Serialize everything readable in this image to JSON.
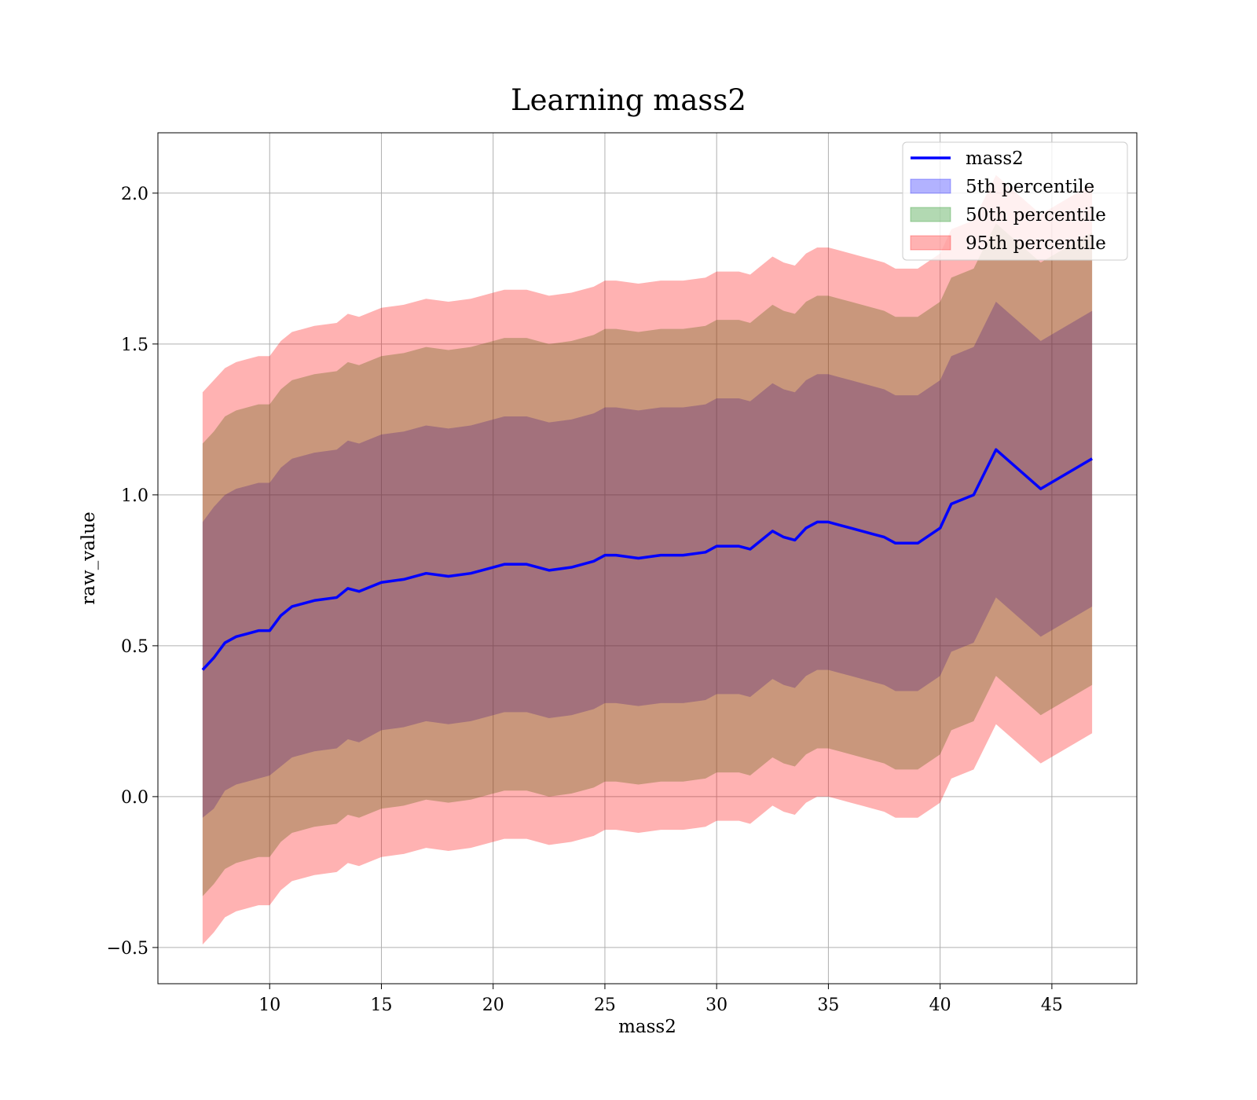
{
  "chart_data": {
    "type": "area",
    "title": "Learning mass2",
    "xlabel": "mass2",
    "ylabel": "raw_value",
    "xlim": [
      5.0,
      48.8
    ],
    "ylim": [
      -0.62,
      2.2
    ],
    "xticks": [
      10,
      15,
      20,
      25,
      30,
      35,
      40,
      45
    ],
    "yticks": [
      -0.5,
      0.0,
      0.5,
      1.0,
      1.5,
      2.0
    ],
    "ytick_labels": [
      "−0.5",
      "0.0",
      "0.5",
      "1.0",
      "1.5",
      "2.0"
    ],
    "xtick_labels": [
      "10",
      "15",
      "20",
      "25",
      "30",
      "35",
      "40",
      "45"
    ],
    "grid": true,
    "legend_position": "top-right",
    "x": [
      7.0,
      7.5,
      8.0,
      8.5,
      9.0,
      9.5,
      10.0,
      10.5,
      11.0,
      12.0,
      13.0,
      13.5,
      14.0,
      15.0,
      16.0,
      17.0,
      18.0,
      19.0,
      20.0,
      20.5,
      21.5,
      22.5,
      23.5,
      24.5,
      25.0,
      25.5,
      26.5,
      27.5,
      28.5,
      29.5,
      30.0,
      30.5,
      31.0,
      31.5,
      32.0,
      32.5,
      33.0,
      33.5,
      34.0,
      34.5,
      35.0,
      35.5,
      36.0,
      36.5,
      37.0,
      37.5,
      38.0,
      39.0,
      40.0,
      40.5,
      41.5,
      42.5,
      44.5,
      46.8
    ],
    "series": [
      {
        "name": "mass2",
        "kind": "line",
        "color": "#0000ff",
        "values": [
          0.42,
          0.46,
          0.51,
          0.53,
          0.54,
          0.55,
          0.55,
          0.6,
          0.63,
          0.65,
          0.66,
          0.69,
          0.68,
          0.71,
          0.72,
          0.74,
          0.73,
          0.74,
          0.76,
          0.77,
          0.77,
          0.75,
          0.76,
          0.78,
          0.8,
          0.8,
          0.79,
          0.8,
          0.8,
          0.81,
          0.83,
          0.83,
          0.83,
          0.82,
          0.85,
          0.88,
          0.86,
          0.85,
          0.89,
          0.91,
          0.91,
          0.9,
          0.89,
          0.88,
          0.87,
          0.86,
          0.84,
          0.84,
          0.89,
          0.97,
          1.0,
          1.15,
          1.02,
          1.12
        ]
      },
      {
        "name": "5th percentile",
        "kind": "band",
        "color": "#0000ff",
        "opacity": 0.3,
        "lower": [
          -0.07,
          -0.04,
          0.02,
          0.04,
          0.05,
          0.06,
          0.07,
          0.1,
          0.13,
          0.15,
          0.16,
          0.19,
          0.18,
          0.22,
          0.23,
          0.25,
          0.24,
          0.25,
          0.27,
          0.28,
          0.28,
          0.26,
          0.27,
          0.29,
          0.31,
          0.31,
          0.3,
          0.31,
          0.31,
          0.32,
          0.34,
          0.34,
          0.34,
          0.33,
          0.36,
          0.39,
          0.37,
          0.36,
          0.4,
          0.42,
          0.42,
          0.41,
          0.4,
          0.39,
          0.38,
          0.37,
          0.35,
          0.35,
          0.4,
          0.48,
          0.51,
          0.66,
          0.53,
          0.63
        ],
        "upper": [
          0.91,
          0.96,
          1.0,
          1.02,
          1.03,
          1.04,
          1.04,
          1.09,
          1.12,
          1.14,
          1.15,
          1.18,
          1.17,
          1.2,
          1.21,
          1.23,
          1.22,
          1.23,
          1.25,
          1.26,
          1.26,
          1.24,
          1.25,
          1.27,
          1.29,
          1.29,
          1.28,
          1.29,
          1.29,
          1.3,
          1.32,
          1.32,
          1.32,
          1.31,
          1.34,
          1.37,
          1.35,
          1.34,
          1.38,
          1.4,
          1.4,
          1.39,
          1.38,
          1.37,
          1.36,
          1.35,
          1.33,
          1.33,
          1.38,
          1.46,
          1.49,
          1.64,
          1.51,
          1.61
        ]
      },
      {
        "name": "50th percentile",
        "kind": "band",
        "color": "#008000",
        "opacity": 0.3,
        "lower": [
          -0.33,
          -0.29,
          -0.24,
          -0.22,
          -0.21,
          -0.2,
          -0.2,
          -0.15,
          -0.12,
          -0.1,
          -0.09,
          -0.06,
          -0.07,
          -0.04,
          -0.03,
          -0.01,
          -0.02,
          -0.01,
          0.01,
          0.02,
          0.02,
          0.0,
          0.01,
          0.03,
          0.05,
          0.05,
          0.04,
          0.05,
          0.05,
          0.06,
          0.08,
          0.08,
          0.08,
          0.07,
          0.1,
          0.13,
          0.11,
          0.1,
          0.14,
          0.16,
          0.16,
          0.15,
          0.14,
          0.13,
          0.12,
          0.11,
          0.09,
          0.09,
          0.14,
          0.22,
          0.25,
          0.4,
          0.27,
          0.37
        ],
        "upper": [
          1.17,
          1.21,
          1.26,
          1.28,
          1.29,
          1.3,
          1.3,
          1.35,
          1.38,
          1.4,
          1.41,
          1.44,
          1.43,
          1.46,
          1.47,
          1.49,
          1.48,
          1.49,
          1.51,
          1.52,
          1.52,
          1.5,
          1.51,
          1.53,
          1.55,
          1.55,
          1.54,
          1.55,
          1.55,
          1.56,
          1.58,
          1.58,
          1.58,
          1.57,
          1.6,
          1.63,
          1.61,
          1.6,
          1.64,
          1.66,
          1.66,
          1.65,
          1.64,
          1.63,
          1.62,
          1.61,
          1.59,
          1.59,
          1.64,
          1.72,
          1.75,
          1.9,
          1.77,
          1.87
        ]
      },
      {
        "name": "95th percentile",
        "kind": "band",
        "color": "#ff0000",
        "opacity": 0.3,
        "lower": [
          -0.49,
          -0.45,
          -0.4,
          -0.38,
          -0.37,
          -0.36,
          -0.36,
          -0.31,
          -0.28,
          -0.26,
          -0.25,
          -0.22,
          -0.23,
          -0.2,
          -0.19,
          -0.17,
          -0.18,
          -0.17,
          -0.15,
          -0.14,
          -0.14,
          -0.16,
          -0.15,
          -0.13,
          -0.11,
          -0.11,
          -0.12,
          -0.11,
          -0.11,
          -0.1,
          -0.08,
          -0.08,
          -0.08,
          -0.09,
          -0.06,
          -0.03,
          -0.05,
          -0.06,
          -0.02,
          0.0,
          0.0,
          -0.01,
          -0.02,
          -0.03,
          -0.04,
          -0.05,
          -0.07,
          -0.07,
          -0.02,
          0.06,
          0.09,
          0.24,
          0.11,
          0.21
        ],
        "upper": [
          1.34,
          1.38,
          1.42,
          1.44,
          1.45,
          1.46,
          1.46,
          1.51,
          1.54,
          1.56,
          1.57,
          1.6,
          1.59,
          1.62,
          1.63,
          1.65,
          1.64,
          1.65,
          1.67,
          1.68,
          1.68,
          1.66,
          1.67,
          1.69,
          1.71,
          1.71,
          1.7,
          1.71,
          1.71,
          1.72,
          1.74,
          1.74,
          1.74,
          1.73,
          1.76,
          1.79,
          1.77,
          1.76,
          1.8,
          1.82,
          1.82,
          1.81,
          1.8,
          1.79,
          1.78,
          1.77,
          1.75,
          1.75,
          1.8,
          1.88,
          1.91,
          2.06,
          1.93,
          2.03
        ]
      }
    ]
  }
}
